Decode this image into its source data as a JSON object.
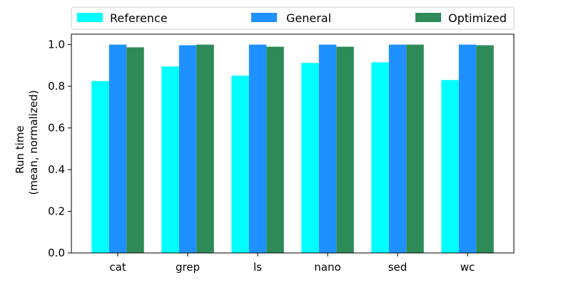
{
  "chart_data": {
    "type": "bar",
    "categories": [
      "cat",
      "grep",
      "ls",
      "nano",
      "sed",
      "wc"
    ],
    "series": [
      {
        "name": "Reference",
        "color": "#00ffff",
        "values": [
          0.825,
          0.895,
          0.851,
          0.912,
          0.915,
          0.83
        ]
      },
      {
        "name": "General",
        "color": "#1e90ff",
        "values": [
          1.0,
          0.997,
          1.0,
          1.0,
          1.0,
          1.0
        ]
      },
      {
        "name": "Optimized",
        "color": "#2e8b57",
        "values": [
          0.987,
          1.0,
          0.99,
          0.99,
          1.0,
          0.997
        ]
      }
    ],
    "title": "",
    "xlabel": "",
    "ylabel_line1": "Run time",
    "ylabel_line2": "(mean, normalized)",
    "ylim": [
      0,
      1.05
    ],
    "yticks": [
      "0.0",
      "0.2",
      "0.4",
      "0.6",
      "0.8",
      "1.0"
    ],
    "grid": false,
    "legend_position": "top"
  }
}
